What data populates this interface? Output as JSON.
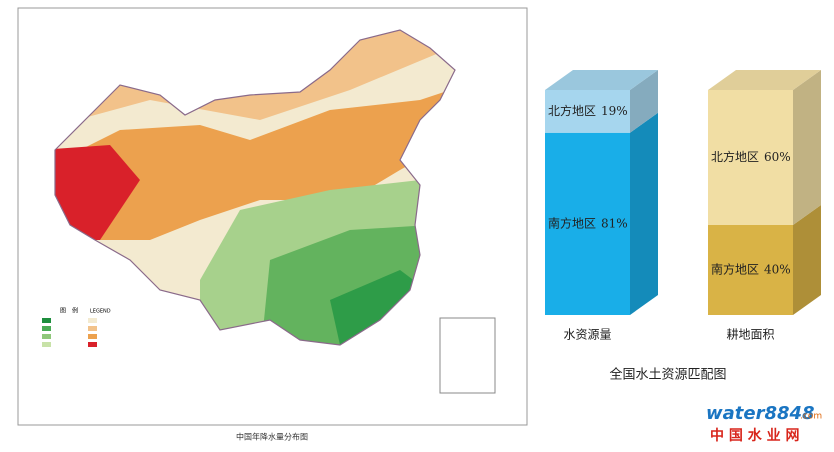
{
  "map": {
    "caption": "中国年降水量分布图",
    "legend_title": "图　例",
    "legend_subtitle": "LEGEND"
  },
  "chart_data": {
    "type": "bar",
    "stacked": true,
    "title": "全国水土资源匹配图",
    "categories": [
      "水资源量",
      "耕地面积"
    ],
    "series": [
      {
        "name": "南方地区",
        "color": [
          "#19aee8",
          "#d9b346"
        ],
        "values": [
          81,
          40
        ],
        "value_labels": [
          "81%",
          "40%"
        ]
      },
      {
        "name": "北方地区",
        "color": [
          "#a6d6ee",
          "#f1dea4"
        ],
        "values": [
          19,
          60
        ],
        "value_labels": [
          "19%",
          "60%"
        ]
      }
    ]
  },
  "watermark": {
    "logo": "water8848",
    "domain": ".com",
    "cn": "中 国 水 业 网"
  }
}
